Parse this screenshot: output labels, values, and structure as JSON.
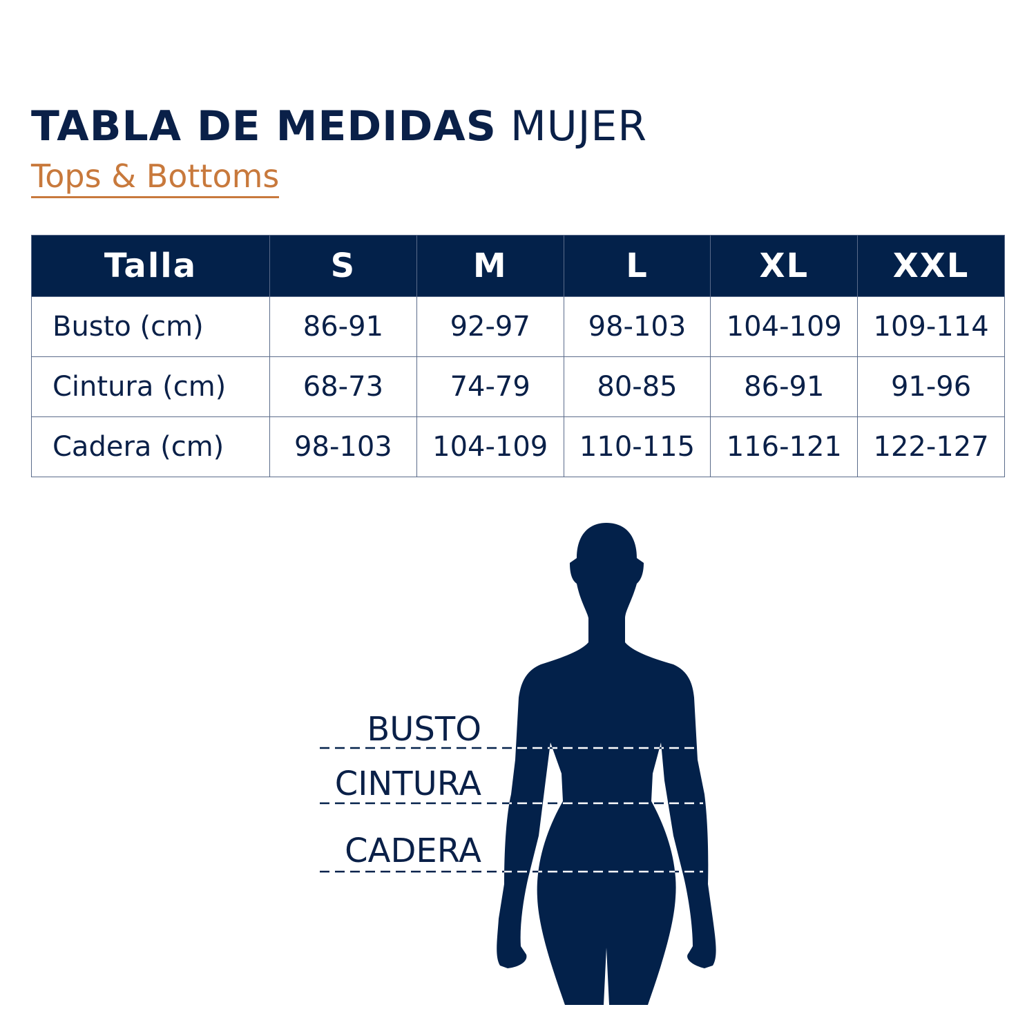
{
  "header": {
    "title_bold": "TABLA DE MEDIDAS",
    "title_light": "MUJER",
    "subtitle": "Tops & Bottoms"
  },
  "table": {
    "columns": [
      "Talla",
      "S",
      "M",
      "L",
      "XL",
      "XXL"
    ],
    "rows": [
      {
        "label": "Busto (cm)",
        "values": [
          "86-91",
          "92-97",
          "98-103",
          "104-109",
          "109-114"
        ]
      },
      {
        "label": "Cintura (cm)",
        "values": [
          "68-73",
          "74-79",
          "80-85",
          "86-91",
          "91-96"
        ]
      },
      {
        "label": "Cadera (cm)",
        "values": [
          "98-103",
          "104-109",
          "110-115",
          "116-121",
          "122-127"
        ]
      }
    ]
  },
  "figure": {
    "labels": [
      "BUSTO",
      "CINTURA",
      "CADERA"
    ]
  },
  "colors": {
    "navy": "#03214a",
    "accent": "#c8793c"
  }
}
